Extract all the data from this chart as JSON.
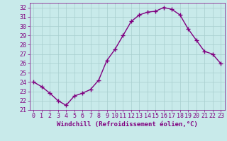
{
  "hours": [
    0,
    1,
    2,
    3,
    4,
    5,
    6,
    7,
    8,
    9,
    10,
    11,
    12,
    13,
    14,
    15,
    16,
    17,
    18,
    19,
    20,
    21,
    22,
    23
  ],
  "values": [
    24.0,
    23.5,
    22.8,
    22.0,
    21.5,
    22.5,
    22.8,
    23.2,
    24.2,
    26.3,
    27.5,
    29.0,
    30.5,
    31.2,
    31.5,
    31.6,
    32.0,
    31.8,
    31.2,
    29.7,
    28.5,
    27.3,
    27.0,
    26.0
  ],
  "line_color": "#800080",
  "marker": "+",
  "marker_size": 4,
  "bg_color": "#c8eaea",
  "grid_color": "#a8cece",
  "xlabel": "Windchill (Refroidissement éolien,°C)",
  "ylim": [
    21,
    32.5
  ],
  "xlim": [
    -0.5,
    23.5
  ],
  "yticks": [
    21,
    22,
    23,
    24,
    25,
    26,
    27,
    28,
    29,
    30,
    31,
    32
  ],
  "xticks": [
    0,
    1,
    2,
    3,
    4,
    5,
    6,
    7,
    8,
    9,
    10,
    11,
    12,
    13,
    14,
    15,
    16,
    17,
    18,
    19,
    20,
    21,
    22,
    23
  ],
  "tick_color": "#800080",
  "label_fontsize": 6.5,
  "tick_fontsize": 6.0,
  "linewidth": 1.0,
  "marker_linewidth": 1.0
}
